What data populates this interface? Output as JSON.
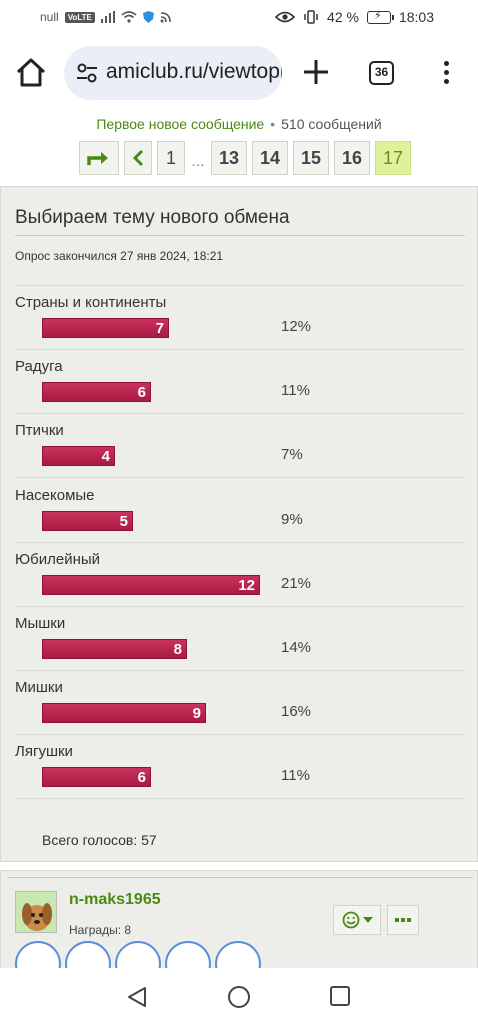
{
  "status_bar": {
    "carrier": "null",
    "volte": "VoLTE",
    "battery": "42 %",
    "time": "18:03"
  },
  "browser": {
    "url": "amiclub.ru/viewtopic",
    "tab_count": "36",
    "icons": [
      "home-icon",
      "site-settings-icon",
      "new-tab-icon",
      "tabs-icon",
      "menu-icon"
    ]
  },
  "topic": {
    "first_new_link": "Первое новое сообщение",
    "separator": "•",
    "message_count": "510 сообщений"
  },
  "pagination": {
    "pages": [
      "1",
      "13",
      "14",
      "15",
      "16"
    ],
    "ellipsis": "…",
    "current": "17"
  },
  "poll": {
    "title": "Выбираем тему нового обмена",
    "ended": "Опрос закончился 27 янв 2024, 18:21",
    "options": [
      {
        "label": "Страны и континенты",
        "votes": "7",
        "percent": "12%",
        "share": 0.583
      },
      {
        "label": "Радуга",
        "votes": "6",
        "percent": "11%",
        "share": 0.5
      },
      {
        "label": "Птички",
        "votes": "4",
        "percent": "7%",
        "share": 0.333
      },
      {
        "label": "Насекомые",
        "votes": "5",
        "percent": "9%",
        "share": 0.417
      },
      {
        "label": "Юбилейный",
        "votes": "12",
        "percent": "21%",
        "share": 1.0
      },
      {
        "label": "Мышки",
        "votes": "8",
        "percent": "14%",
        "share": 0.667
      },
      {
        "label": "Мишки",
        "votes": "9",
        "percent": "16%",
        "share": 0.75
      },
      {
        "label": "Лягушки",
        "votes": "6",
        "percent": "11%",
        "share": 0.5
      }
    ],
    "total": "Всего голосов: 57",
    "bar_color": "#b9224f"
  },
  "post": {
    "username": "n-maks1965",
    "awards": "Награды: 8",
    "accent": "#4b8a12"
  }
}
